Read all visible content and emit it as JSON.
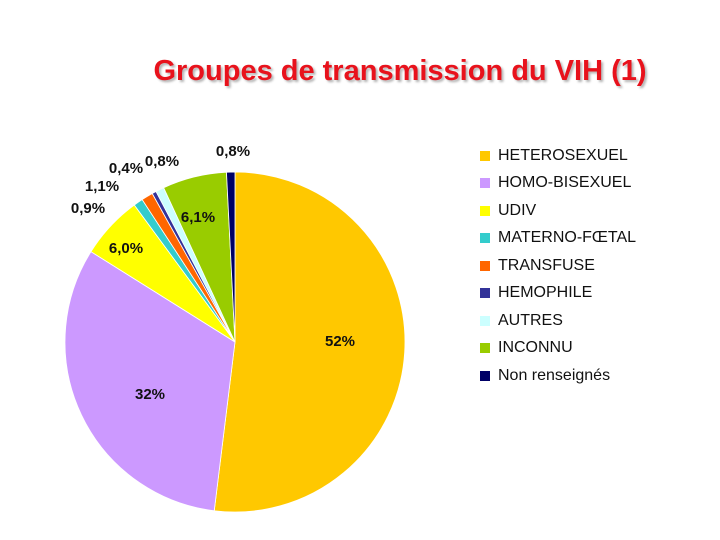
{
  "slide": {
    "title": "Groupes de transmission du VIH (1)"
  },
  "chart_data": {
    "type": "pie",
    "title": "Groupes de transmission du VIH (1)",
    "legend_position": "right",
    "slices": [
      {
        "name": "HETEROSEXUEL",
        "value": 52.0,
        "label": "52%",
        "color": "#ffc800"
      },
      {
        "name": "HOMO-BISEXUEL",
        "value": 32.0,
        "label": "32%",
        "color": "#cc99ff"
      },
      {
        "name": "UDIV",
        "value": 6.0,
        "label": "6,0%",
        "color": "#ffff00"
      },
      {
        "name": "MATERNO-FŒTAL",
        "value": 0.9,
        "label": "0,9%",
        "color": "#33cccc"
      },
      {
        "name": "TRANSFUSE",
        "value": 1.1,
        "label": "1,1%",
        "color": "#ff6600"
      },
      {
        "name": "HEMOPHILE",
        "value": 0.4,
        "label": "0,4%",
        "color": "#333399"
      },
      {
        "name": "AUTRES",
        "value": 0.8,
        "label": "0,8%",
        "color": "#ccffff"
      },
      {
        "name": "INCONNU",
        "value": 6.1,
        "label": "6,1%",
        "color": "#99cc00"
      },
      {
        "name": "Non renseignés",
        "value": 0.8,
        "label": "0,8%",
        "color": "#000066"
      }
    ]
  }
}
